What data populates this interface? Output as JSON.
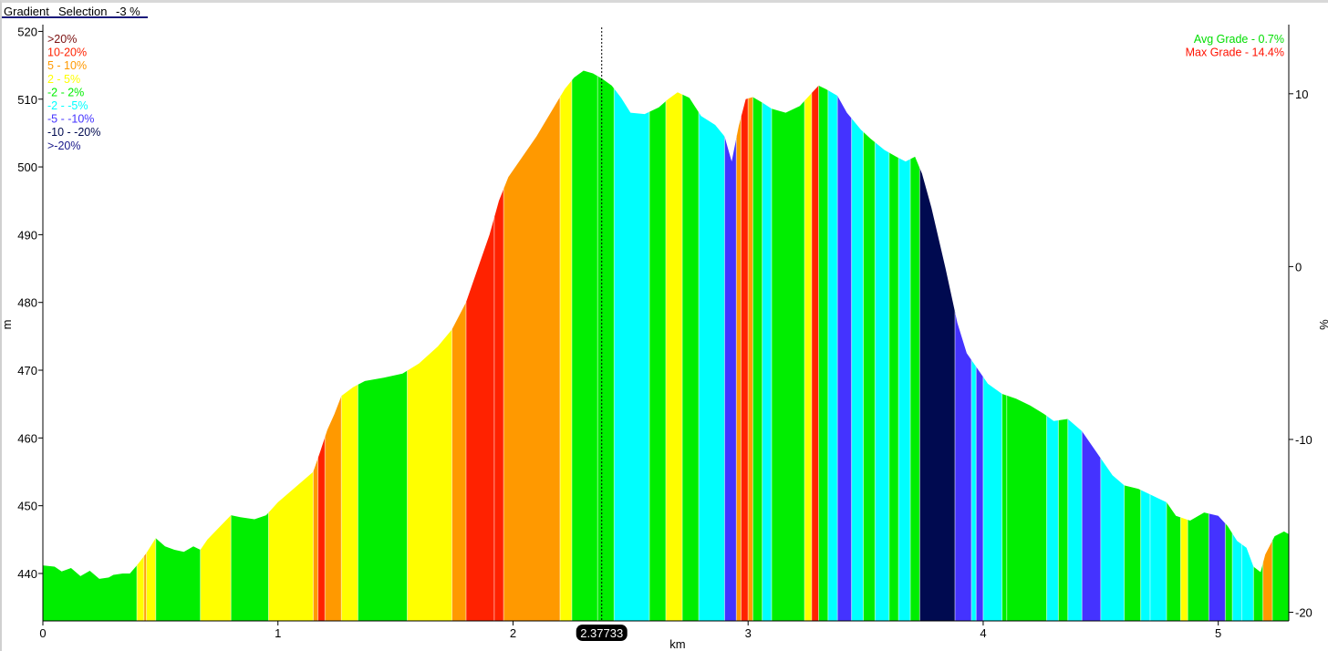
{
  "tabs": {
    "gradient": "Gradient",
    "selection": "Selection",
    "value": "-3 %"
  },
  "cursor": {
    "label": "2.37733",
    "x": 2.37733
  },
  "colors": {
    "gt20": "#7a1010",
    "g10_20": "#ff2200",
    "g5_10": "#ff9900",
    "g2_5": "#ffff00",
    "gm2_2": "#00ee00",
    "gm2_m5": "#00ffff",
    "gm5_m10": "#4433ff",
    "gm10_m20": "#000a50",
    "ltm20": "#1a1a8a"
  },
  "chart_data": {
    "type": "area",
    "xlabel": "km",
    "ylabel": "m",
    "y2label": "%",
    "xlim": [
      0,
      5.3
    ],
    "ylim": [
      433,
      521
    ],
    "y2lim": [
      -20.5,
      14
    ],
    "xticks": [
      0,
      1,
      2,
      3,
      4,
      5
    ],
    "yticks": [
      440,
      450,
      460,
      470,
      480,
      490,
      500,
      510,
      520
    ],
    "y2ticks": [
      10,
      0,
      -10,
      -20
    ],
    "legend": [
      {
        "label": ">20%",
        "color": "gt20"
      },
      {
        "label": "10-20%",
        "color": "g10_20"
      },
      {
        "label": "5 - 10%",
        "color": "g5_10"
      },
      {
        "label": "2 - 5%",
        "color": "g2_5"
      },
      {
        "label": "-2 - 2%",
        "color": "gm2_2"
      },
      {
        "label": "-2 - -5%",
        "color": "gm2_m5"
      },
      {
        "label": "-5 - -10%",
        "color": "gm5_m10"
      },
      {
        "label": "-10 - -20%",
        "color": "gm10_m20"
      },
      {
        "label": ">-20%",
        "color": "ltm20"
      }
    ],
    "stats": [
      {
        "label": "Avg Grade - 0.7%",
        "color": "#00dd00"
      },
      {
        "label": "Max Grade - 14.4%",
        "color": "#ff1100"
      }
    ],
    "profile": [
      [
        0.0,
        441.2
      ],
      [
        0.05,
        441.0
      ],
      [
        0.08,
        440.3
      ],
      [
        0.12,
        440.8
      ],
      [
        0.16,
        439.6
      ],
      [
        0.2,
        440.4
      ],
      [
        0.24,
        439.2
      ],
      [
        0.28,
        439.4
      ],
      [
        0.3,
        439.8
      ],
      [
        0.34,
        440.0
      ],
      [
        0.37,
        440.0
      ],
      [
        0.4,
        441.2
      ],
      [
        0.44,
        443.0
      ],
      [
        0.48,
        445.2
      ],
      [
        0.52,
        444.0
      ],
      [
        0.56,
        443.5
      ],
      [
        0.6,
        443.2
      ],
      [
        0.64,
        444.0
      ],
      [
        0.67,
        443.5
      ],
      [
        0.7,
        445.0
      ],
      [
        0.75,
        446.8
      ],
      [
        0.8,
        448.6
      ],
      [
        0.84,
        448.3
      ],
      [
        0.9,
        448.0
      ],
      [
        0.95,
        448.6
      ],
      [
        1.0,
        450.5
      ],
      [
        1.05,
        452.0
      ],
      [
        1.1,
        453.5
      ],
      [
        1.15,
        455.0
      ],
      [
        1.18,
        458.0
      ],
      [
        1.21,
        461.2
      ],
      [
        1.24,
        463.5
      ],
      [
        1.27,
        466.2
      ],
      [
        1.32,
        467.5
      ],
      [
        1.37,
        468.4
      ],
      [
        1.45,
        468.9
      ],
      [
        1.53,
        469.5
      ],
      [
        1.6,
        471.0
      ],
      [
        1.68,
        473.5
      ],
      [
        1.74,
        476.0
      ],
      [
        1.8,
        480.0
      ],
      [
        1.85,
        485.0
      ],
      [
        1.9,
        490.0
      ],
      [
        1.94,
        495.0
      ],
      [
        1.98,
        498.5
      ],
      [
        2.04,
        501.5
      ],
      [
        2.1,
        504.5
      ],
      [
        2.16,
        508.0
      ],
      [
        2.22,
        511.5
      ],
      [
        2.26,
        513.2
      ],
      [
        2.3,
        514.2
      ],
      [
        2.34,
        513.8
      ],
      [
        2.38,
        513.0
      ],
      [
        2.42,
        512.0
      ],
      [
        2.46,
        510.2
      ],
      [
        2.5,
        508.0
      ],
      [
        2.56,
        507.8
      ],
      [
        2.62,
        508.8
      ],
      [
        2.66,
        510.0
      ],
      [
        2.7,
        511.0
      ],
      [
        2.75,
        510.2
      ],
      [
        2.8,
        507.5
      ],
      [
        2.86,
        506.2
      ],
      [
        2.9,
        504.5
      ],
      [
        2.93,
        500.8
      ],
      [
        2.96,
        506.0
      ],
      [
        2.99,
        510.0
      ],
      [
        3.02,
        510.3
      ],
      [
        3.06,
        509.5
      ],
      [
        3.1,
        508.6
      ],
      [
        3.16,
        508.0
      ],
      [
        3.22,
        509.0
      ],
      [
        3.26,
        510.5
      ],
      [
        3.3,
        512.0
      ],
      [
        3.33,
        511.5
      ],
      [
        3.38,
        510.5
      ],
      [
        3.42,
        508.0
      ],
      [
        3.48,
        505.5
      ],
      [
        3.52,
        504.2
      ],
      [
        3.58,
        502.5
      ],
      [
        3.63,
        501.5
      ],
      [
        3.67,
        500.8
      ],
      [
        3.71,
        501.5
      ],
      [
        3.74,
        499.0
      ],
      [
        3.78,
        494.0
      ],
      [
        3.84,
        485.0
      ],
      [
        3.89,
        477.0
      ],
      [
        3.93,
        472.5
      ],
      [
        3.97,
        470.5
      ],
      [
        4.02,
        468.0
      ],
      [
        4.08,
        466.5
      ],
      [
        4.14,
        465.8
      ],
      [
        4.2,
        464.8
      ],
      [
        4.26,
        463.5
      ],
      [
        4.3,
        462.5
      ],
      [
        4.36,
        462.8
      ],
      [
        4.42,
        461.0
      ],
      [
        4.46,
        459.0
      ],
      [
        4.5,
        457.0
      ],
      [
        4.55,
        454.5
      ],
      [
        4.6,
        453.0
      ],
      [
        4.66,
        452.5
      ],
      [
        4.72,
        451.5
      ],
      [
        4.78,
        450.5
      ],
      [
        4.82,
        448.5
      ],
      [
        4.88,
        447.8
      ],
      [
        4.94,
        449.0
      ],
      [
        5.0,
        448.5
      ],
      [
        5.04,
        447.0
      ],
      [
        5.08,
        444.8
      ],
      [
        5.12,
        443.8
      ],
      [
        5.15,
        441.0
      ],
      [
        5.18,
        440.2
      ],
      [
        5.2,
        442.8
      ],
      [
        5.24,
        445.5
      ],
      [
        5.28,
        446.2
      ],
      [
        5.3,
        445.8
      ]
    ],
    "bands": [
      [
        0.0,
        0.4,
        "gm2_2"
      ],
      [
        0.4,
        0.43,
        "g2_5"
      ],
      [
        0.43,
        0.44,
        "g5_10"
      ],
      [
        0.44,
        0.48,
        "g2_5"
      ],
      [
        0.48,
        0.67,
        "gm2_2"
      ],
      [
        0.67,
        0.8,
        "g2_5"
      ],
      [
        0.8,
        0.96,
        "gm2_2"
      ],
      [
        0.96,
        1.15,
        "g2_5"
      ],
      [
        1.15,
        1.17,
        "g5_10"
      ],
      [
        1.17,
        1.2,
        "g10_20"
      ],
      [
        1.2,
        1.27,
        "g5_10"
      ],
      [
        1.27,
        1.34,
        "g2_5"
      ],
      [
        1.34,
        1.55,
        "gm2_2"
      ],
      [
        1.55,
        1.74,
        "g2_5"
      ],
      [
        1.74,
        1.8,
        "g5_10"
      ],
      [
        1.8,
        1.92,
        "g10_20"
      ],
      [
        1.92,
        1.96,
        "g10_20"
      ],
      [
        1.96,
        2.2,
        "g5_10"
      ],
      [
        2.2,
        2.25,
        "g2_5"
      ],
      [
        2.25,
        2.36,
        "gm2_2"
      ],
      [
        2.36,
        2.43,
        "gm2_2"
      ],
      [
        2.43,
        2.58,
        "gm2_m5"
      ],
      [
        2.58,
        2.65,
        "gm2_2"
      ],
      [
        2.65,
        2.72,
        "g2_5"
      ],
      [
        2.72,
        2.79,
        "gm2_2"
      ],
      [
        2.79,
        2.9,
        "gm2_m5"
      ],
      [
        2.9,
        2.95,
        "gm5_m10"
      ],
      [
        2.95,
        2.97,
        "g5_10"
      ],
      [
        2.97,
        3.0,
        "g10_20"
      ],
      [
        3.0,
        3.02,
        "g5_10"
      ],
      [
        3.02,
        3.06,
        "gm2_2"
      ],
      [
        3.06,
        3.1,
        "gm2_m5"
      ],
      [
        3.1,
        3.24,
        "gm2_2"
      ],
      [
        3.24,
        3.27,
        "g2_5"
      ],
      [
        3.27,
        3.3,
        "g10_20"
      ],
      [
        3.3,
        3.34,
        "gm2_2"
      ],
      [
        3.34,
        3.38,
        "gm2_m5"
      ],
      [
        3.38,
        3.44,
        "gm5_m10"
      ],
      [
        3.44,
        3.49,
        "gm2_m5"
      ],
      [
        3.49,
        3.54,
        "gm2_2"
      ],
      [
        3.54,
        3.6,
        "gm2_m5"
      ],
      [
        3.6,
        3.64,
        "gm2_2"
      ],
      [
        3.64,
        3.69,
        "gm2_m5"
      ],
      [
        3.69,
        3.73,
        "gm2_2"
      ],
      [
        3.73,
        3.88,
        "gm10_m20"
      ],
      [
        3.88,
        3.95,
        "gm5_m10"
      ],
      [
        3.95,
        3.97,
        "gm2_m5"
      ],
      [
        3.97,
        4.0,
        "gm5_m10"
      ],
      [
        4.0,
        4.08,
        "gm2_m5"
      ],
      [
        4.08,
        4.1,
        "gm2_2"
      ],
      [
        4.1,
        4.27,
        "gm2_2"
      ],
      [
        4.27,
        4.32,
        "gm2_m5"
      ],
      [
        4.32,
        4.36,
        "gm2_2"
      ],
      [
        4.36,
        4.42,
        "gm2_m5"
      ],
      [
        4.42,
        4.5,
        "gm5_m10"
      ],
      [
        4.5,
        4.6,
        "gm2_m5"
      ],
      [
        4.6,
        4.67,
        "gm2_2"
      ],
      [
        4.67,
        4.71,
        "gm2_m5"
      ],
      [
        4.71,
        4.78,
        "gm2_m5"
      ],
      [
        4.78,
        4.84,
        "gm2_2"
      ],
      [
        4.84,
        4.87,
        "g2_5"
      ],
      [
        4.87,
        4.96,
        "gm2_2"
      ],
      [
        4.96,
        5.03,
        "gm5_m10"
      ],
      [
        5.03,
        5.06,
        "gm2_2"
      ],
      [
        5.06,
        5.1,
        "gm2_m5"
      ],
      [
        5.1,
        5.15,
        "gm2_m5"
      ],
      [
        5.15,
        5.19,
        "gm2_2"
      ],
      [
        5.19,
        5.23,
        "g5_10"
      ],
      [
        5.23,
        5.3,
        "gm2_2"
      ]
    ]
  }
}
